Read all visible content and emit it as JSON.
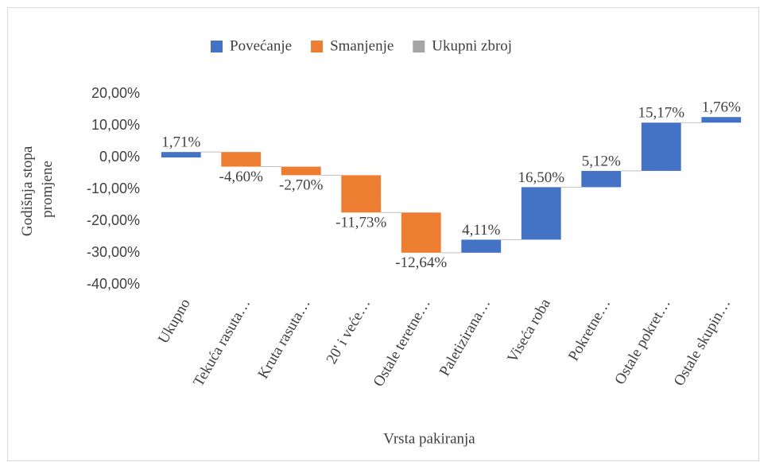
{
  "chart_data": {
    "type": "waterfall",
    "legend": [
      {
        "name": "Povećanje",
        "color": "#4472c4"
      },
      {
        "name": "Smanjenje",
        "color": "#ed7d31"
      },
      {
        "name": "Ukupni zbroj",
        "color": "#a5a5a5"
      }
    ],
    "categories": [
      "Ukupno",
      "Tekuća rasuta…",
      "Kruta rasuta…",
      "20' i veće…",
      "Ostale teretne…",
      "Paletizirana…",
      "Viseća roba",
      "Pokretne…",
      "Ostale pokret…",
      "Ostale skupin…"
    ],
    "values": [
      1.71,
      -4.6,
      -2.7,
      -11.73,
      -12.64,
      4.11,
      16.5,
      5.12,
      15.17,
      1.76
    ],
    "value_labels": [
      "1,71%",
      "-4,60%",
      "-2,70%",
      "-11,73%",
      "-12,64%",
      "4,11%",
      "16,50%",
      "5,12%",
      "15,17%",
      "1,76%"
    ],
    "ylim": [
      -40,
      20
    ],
    "yticks": [
      {
        "value": 20,
        "label": "20,00%"
      },
      {
        "value": 10,
        "label": "10,00%"
      },
      {
        "value": 0,
        "label": "0,00%"
      },
      {
        "value": -10,
        "label": "-10,00%"
      },
      {
        "value": -20,
        "label": "-20,00%"
      },
      {
        "value": -30,
        "label": "-30,00%"
      },
      {
        "value": -40,
        "label": "-40,00%"
      }
    ],
    "y_label": [
      "Godišnja stopa",
      "promjene"
    ],
    "x_label": "Vrsta pakiranja",
    "grid": false,
    "legend_position": "top"
  }
}
